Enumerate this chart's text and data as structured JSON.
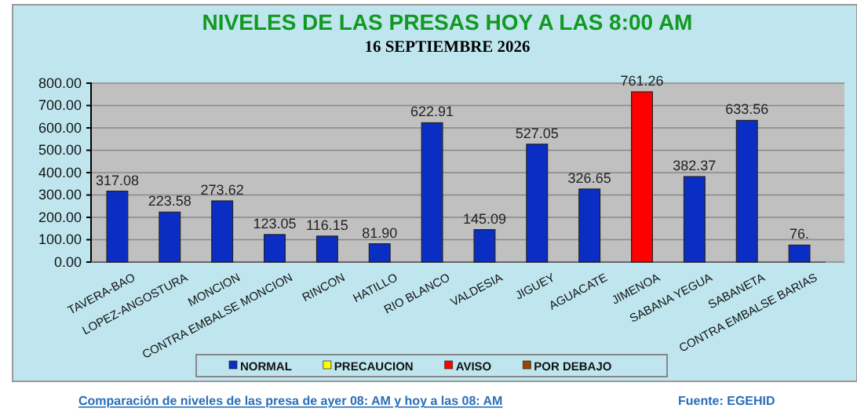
{
  "chart_data": {
    "type": "bar",
    "title": "NIVELES DE LAS PRESAS HOY A LAS 8:00 AM",
    "subtitle": "16 SEPTIEMBRE 2026",
    "categories": [
      "TAVERA-BAO",
      "LOPEZ-ANGOSTURA",
      "MONCION",
      "CONTRA EMBALSE MONCION",
      "RINCON",
      "HATILLO",
      "RIO BLANCO",
      "VALDESIA",
      "JIGUEY",
      "AGUACATE",
      "JIMENOA",
      "SABANA YEGUA",
      "SABANETA",
      "CONTRA EMBALSE BARIAS"
    ],
    "stacked": true,
    "series": [
      {
        "name": "NORMAL",
        "color": "#0a2ec4",
        "values": [
          317.08,
          223.58,
          273.62,
          123.05,
          116.15,
          81.9,
          622.91,
          145.09,
          527.05,
          326.65,
          null,
          382.37,
          633.56,
          76
        ],
        "value_labels": [
          "317.08",
          "223.58",
          "273.62",
          "123.05",
          "116.15",
          "81.90",
          "622.91",
          "145.09",
          "527.05",
          "326.65",
          null,
          "382.37",
          "633.56",
          "76."
        ]
      },
      {
        "name": "PRECAUCION",
        "color": "#ffff00",
        "values": [
          null,
          null,
          null,
          null,
          null,
          null,
          null,
          null,
          null,
          null,
          null,
          null,
          null,
          null
        ]
      },
      {
        "name": "AVISO",
        "color": "#ff0000",
        "values": [
          null,
          null,
          null,
          null,
          null,
          null,
          null,
          null,
          null,
          null,
          761.26,
          null,
          null,
          null
        ],
        "value_labels": [
          null,
          null,
          null,
          null,
          null,
          null,
          null,
          null,
          null,
          null,
          "761.26",
          null,
          null,
          null
        ]
      },
      {
        "name": "POR DEBAJO",
        "color": "#994400",
        "values": [
          null,
          null,
          null,
          null,
          null,
          null,
          null,
          null,
          null,
          null,
          null,
          null,
          null,
          null
        ]
      }
    ],
    "ylim": [
      0,
      800
    ],
    "yticks": [
      {
        "value": 0,
        "label": "0.00"
      },
      {
        "value": 100,
        "label": "100.00"
      },
      {
        "value": 200,
        "label": "200.00"
      },
      {
        "value": 300,
        "label": "300.00"
      },
      {
        "value": 400,
        "label": "400.00"
      },
      {
        "value": 500,
        "label": "500.00"
      },
      {
        "value": 600,
        "label": "600.00"
      },
      {
        "value": 700,
        "label": "700.00"
      },
      {
        "value": 800,
        "label": "800.00"
      }
    ],
    "grid": "y",
    "legend": "bottom",
    "annotations": [
      "Comparación de niveles de las presa de ayer 08: AM y hoy a las 08: AM",
      "Fuente: EGEHID"
    ]
  }
}
